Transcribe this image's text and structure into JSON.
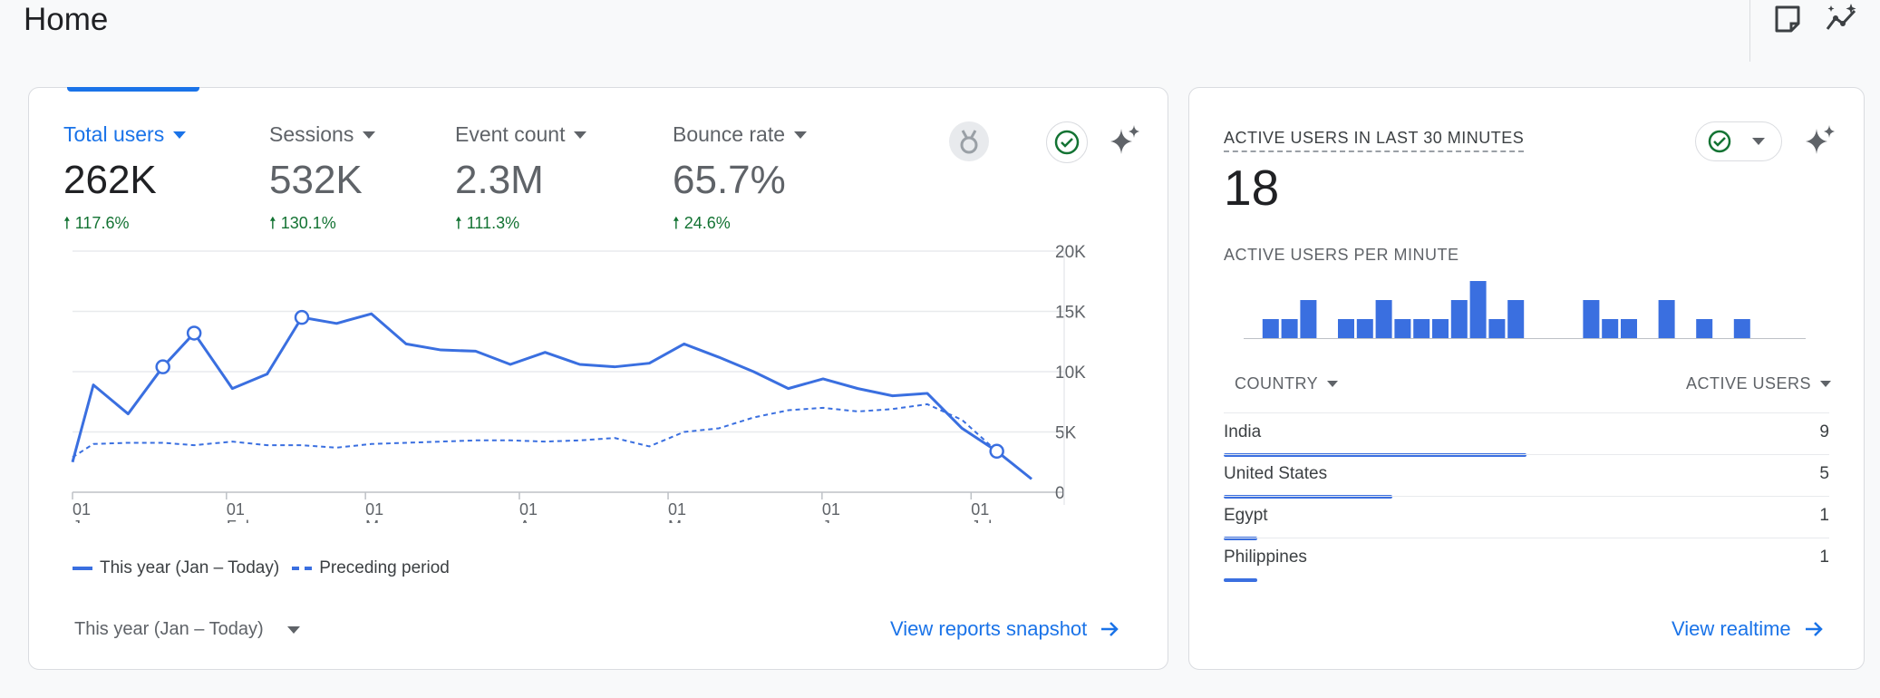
{
  "page": {
    "title": "Home"
  },
  "colors": {
    "accent": "#1a73e8",
    "series": "#3a6fe0",
    "positive": "#137333"
  },
  "overview": {
    "metrics": [
      {
        "label": "Total users",
        "value": "262K",
        "change": "117.6%",
        "active": true
      },
      {
        "label": "Sessions",
        "value": "532K",
        "change": "130.1%"
      },
      {
        "label": "Event count",
        "value": "2.3M",
        "change": "111.3%"
      },
      {
        "label": "Bounce rate",
        "value": "65.7%",
        "change": "24.6%"
      }
    ],
    "icons": {
      "insight": "award-icon",
      "status": "check-circle-icon",
      "ai": "sparkle-icon"
    },
    "legend": {
      "current": "This year (Jan – Today)",
      "previous": "Preceding period"
    },
    "date_range": "This year (Jan – Today)",
    "link": "View reports snapshot"
  },
  "chart_data": {
    "type": "line",
    "ylim": [
      0,
      20000
    ],
    "yticks": [
      "0",
      "5K",
      "10K",
      "15K",
      "20K"
    ],
    "xticks": [
      {
        "day": "01",
        "month": "Jan",
        "x": 0
      },
      {
        "day": "01",
        "month": "Feb",
        "x": 4.43
      },
      {
        "day": "01",
        "month": "Mar",
        "x": 8.43
      },
      {
        "day": "01",
        "month": "Apr",
        "x": 12.86
      },
      {
        "day": "01",
        "month": "May",
        "x": 17.14
      },
      {
        "day": "01",
        "month": "Jun",
        "x": 21.57
      },
      {
        "day": "01",
        "month": "Jul",
        "x": 25.86
      }
    ],
    "series": [
      {
        "name": "This year (Jan – Today)",
        "style": "solid",
        "x": [
          0,
          0.6,
          1.6,
          2.6,
          3.5,
          4.6,
          5.6,
          6.6,
          7.6,
          8.6,
          9.6,
          10.6,
          11.6,
          12.6,
          13.6,
          14.6,
          15.6,
          16.6,
          17.6,
          18.6,
          19.6,
          20.6,
          21.6,
          22.6,
          23.6,
          24.6,
          25.6,
          26.6,
          27.6
        ],
        "values": [
          2500,
          8900,
          6500,
          10400,
          13200,
          8600,
          9800,
          14500,
          14000,
          14800,
          12300,
          11800,
          11700,
          10600,
          11600,
          10600,
          10400,
          10700,
          12300,
          11200,
          10000,
          8600,
          9400,
          8600,
          8000,
          8200,
          5300,
          3400,
          1100
        ],
        "markers": [
          3,
          4,
          7,
          27
        ]
      },
      {
        "name": "Preceding period",
        "style": "dashed",
        "x": [
          0,
          0.6,
          1.6,
          2.6,
          3.5,
          4.6,
          5.6,
          6.6,
          7.6,
          8.6,
          9.6,
          10.6,
          11.6,
          12.6,
          13.6,
          14.6,
          15.6,
          16.6,
          17.6,
          18.6,
          19.6,
          20.6,
          21.6,
          22.6,
          23.6,
          24.6,
          25.6,
          26.6,
          27.6
        ],
        "values": [
          2900,
          4000,
          4100,
          4100,
          3900,
          4200,
          3900,
          3900,
          3700,
          4000,
          4100,
          4200,
          4300,
          4300,
          4200,
          4300,
          4500,
          3800,
          5000,
          5300,
          6200,
          6800,
          7000,
          6700,
          6900,
          7300,
          6000,
          3400,
          1100
        ]
      }
    ]
  },
  "realtime": {
    "title": "ACTIVE USERS IN LAST 30 MINUTES",
    "value": "18",
    "per_minute_label": "ACTIVE USERS PER MINUTE",
    "per_minute": [
      0,
      1,
      1,
      2,
      0,
      1,
      1,
      2,
      1,
      1,
      1,
      2,
      3,
      1,
      2,
      0,
      0,
      0,
      2,
      1,
      1,
      0,
      2,
      0,
      1,
      0,
      1,
      0,
      0,
      0
    ],
    "table": {
      "headers": [
        "COUNTRY",
        "ACTIVE USERS"
      ],
      "rows": [
        {
          "country": "India",
          "users": 9
        },
        {
          "country": "United States",
          "users": 5
        },
        {
          "country": "Egypt",
          "users": 1
        },
        {
          "country": "Philippines",
          "users": 1
        }
      ]
    },
    "icons": {
      "status": "check-circle-icon",
      "ai": "sparkle-icon"
    },
    "link": "View realtime"
  }
}
